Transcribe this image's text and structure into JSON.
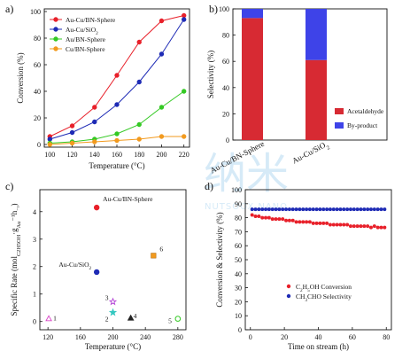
{
  "watermark": {
    "text_cn": "纳米",
    "text_en": "NUTSOOX NANO"
  },
  "chart_data": [
    {
      "panel": "a)",
      "type": "line",
      "xlabel": "Temperature (°C)",
      "ylabel": "Conversion (%)",
      "xlim": [
        95,
        225
      ],
      "ylim": [
        -2,
        102
      ],
      "xticks": [
        100,
        120,
        140,
        160,
        180,
        200,
        220
      ],
      "yticks": [
        0,
        20,
        40,
        60,
        80,
        100
      ],
      "x": [
        100,
        120,
        140,
        160,
        180,
        200,
        220
      ],
      "legend_position": "top-left",
      "series": [
        {
          "name": "Au-Cu/BN-Sphere",
          "color": "#e8202a",
          "marker": "circle",
          "values": [
            6,
            14,
            28,
            52,
            77,
            93,
            97
          ]
        },
        {
          "name": "Au-Cu/SiO",
          "name_sub": "2",
          "color": "#1e2bb5",
          "marker": "circle",
          "values": [
            4,
            9,
            17,
            30,
            47,
            68,
            94
          ]
        },
        {
          "name": "Au/BN-Sphere",
          "color": "#34c924",
          "marker": "circle",
          "values": [
            1,
            2,
            4,
            8,
            15,
            28,
            40
          ]
        },
        {
          "name": "Cu/BN-Sphere",
          "color": "#f29a1e",
          "marker": "circle",
          "values": [
            0,
            1,
            2,
            3,
            4,
            6,
            6
          ]
        }
      ]
    },
    {
      "panel": "b)",
      "type": "bar",
      "stacked": true,
      "ylabel": "Selectivity (%)",
      "ylim": [
        0,
        100
      ],
      "yticks": [
        0,
        20,
        40,
        60,
        80,
        100
      ],
      "categories": [
        "Au-Cu/BN-Sphere",
        "Au-Cu/SiO"
      ],
      "category_subs": [
        "",
        "2"
      ],
      "legend_position": "bottom-right",
      "series": [
        {
          "name": "Acetaldehyde",
          "color": "#d72a33",
          "values": [
            93,
            61
          ]
        },
        {
          "name": "By-product",
          "color": "#3e43e8",
          "values": [
            7,
            39
          ]
        }
      ]
    },
    {
      "panel": "c)",
      "type": "scatter",
      "xlabel": "Temperature (°C)",
      "ylabel_parts": [
        "Specific Rate (mol",
        "C2H5OH",
        "·g",
        "Au",
        "⁻¹h",
        "⁻¹",
        ")"
      ],
      "xlim": [
        110,
        290
      ],
      "ylim": [
        -0.3,
        4.8
      ],
      "xticks": [
        120,
        160,
        200,
        240,
        280
      ],
      "yticks": [
        0,
        1,
        2,
        3,
        4
      ],
      "points": [
        {
          "label": "Au-Cu/BN-Sphere",
          "x": 180,
          "y": 4.15,
          "color": "#e8202a",
          "marker": "circle-filled"
        },
        {
          "label": "Au-Cu/SiO",
          "label_sub": "2",
          "x": 180,
          "y": 1.8,
          "color": "#1e2bb5",
          "marker": "circle-filled"
        },
        {
          "label": "1",
          "x": 121,
          "y": 0.1,
          "color": "#d946c8",
          "marker": "triangle-open"
        },
        {
          "label": "2",
          "x": 200,
          "y": 0.33,
          "color": "#34c7c0",
          "marker": "star-filled"
        },
        {
          "label": "3",
          "x": 200,
          "y": 0.72,
          "color": "#b344d6",
          "marker": "star-open"
        },
        {
          "label": "4",
          "x": 222,
          "y": 0.12,
          "color": "#222222",
          "marker": "triangle-filled"
        },
        {
          "label": "5",
          "x": 280,
          "y": 0.1,
          "color": "#34c924",
          "marker": "circle-open"
        },
        {
          "label": "6",
          "x": 250,
          "y": 2.4,
          "color": "#f29a1e",
          "marker": "square-filled"
        }
      ]
    },
    {
      "panel": "d)",
      "type": "scatter",
      "xlabel": "Time on stream (h)",
      "ylabel": "Conversion & Selectivity (%)",
      "xlim": [
        -3,
        83
      ],
      "ylim": [
        0,
        100
      ],
      "xticks": [
        0,
        20,
        40,
        60,
        80
      ],
      "yticks": [
        0,
        10,
        20,
        30,
        40,
        50,
        60,
        70,
        80,
        90,
        100
      ],
      "legend_position": "bottom-center",
      "series": [
        {
          "name": "C2H5OH Conversion",
          "name_parts": [
            "C",
            "2",
            "H",
            "5",
            "OH Conversion"
          ],
          "color": "#e8202a",
          "x": [
            1,
            3,
            5,
            7,
            9,
            11,
            13,
            15,
            17,
            19,
            21,
            23,
            25,
            27,
            29,
            31,
            33,
            35,
            37,
            39,
            41,
            43,
            45,
            47,
            49,
            51,
            53,
            55,
            57,
            59,
            61,
            63,
            65,
            67,
            69,
            71,
            73,
            75,
            77,
            79
          ],
          "values": [
            82,
            81,
            81,
            80,
            80,
            80,
            79,
            79,
            79,
            79,
            78,
            78,
            78,
            77,
            77,
            77,
            77,
            77,
            76,
            76,
            76,
            76,
            76,
            75,
            75,
            75,
            75,
            75,
            75,
            74,
            74,
            74,
            74,
            74,
            74,
            73,
            74,
            73,
            73,
            73
          ]
        },
        {
          "name": "CH3CHO Selectivity",
          "name_parts": [
            "CH",
            "3",
            "CHO Selectivity"
          ],
          "color": "#1e2bb5",
          "x": [
            1,
            3,
            5,
            7,
            9,
            11,
            13,
            15,
            17,
            19,
            21,
            23,
            25,
            27,
            29,
            31,
            33,
            35,
            37,
            39,
            41,
            43,
            45,
            47,
            49,
            51,
            53,
            55,
            57,
            59,
            61,
            63,
            65,
            67,
            69,
            71,
            73,
            75,
            77,
            79
          ],
          "values": [
            86,
            86,
            86,
            86,
            86,
            86,
            86,
            86,
            86,
            86,
            86,
            86,
            86,
            86,
            86,
            86,
            86,
            86,
            86,
            86,
            86,
            86,
            86,
            86,
            86,
            86,
            86,
            86,
            86,
            86,
            86,
            86,
            86,
            86,
            86,
            86,
            86,
            86,
            86,
            86
          ]
        }
      ]
    }
  ]
}
